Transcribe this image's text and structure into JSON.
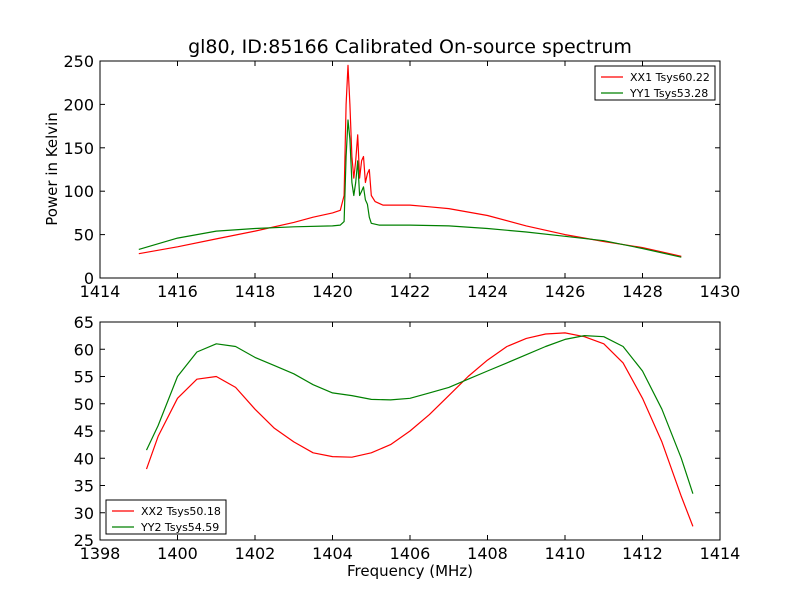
{
  "chart_data": [
    {
      "type": "line",
      "title": "gl80, ID:85166 Calibrated On-source spectrum",
      "xlabel": "",
      "ylabel": "Power in Kelvin",
      "xlim": [
        1414,
        1430
      ],
      "ylim": [
        0,
        250
      ],
      "xticks": [
        1414,
        1416,
        1418,
        1420,
        1422,
        1424,
        1426,
        1428,
        1430
      ],
      "yticks": [
        0,
        50,
        100,
        150,
        200,
        250
      ],
      "legend_position": "top-right",
      "series": [
        {
          "name": "XX1 Tsys60.22",
          "color": "#ff0000",
          "points": [
            [
              1415,
              28
            ],
            [
              1416,
              36
            ],
            [
              1417,
              45
            ],
            [
              1418,
              54
            ],
            [
              1419,
              64
            ],
            [
              1419.5,
              70
            ],
            [
              1420,
              75
            ],
            [
              1420.2,
              78
            ],
            [
              1420.3,
              95
            ],
            [
              1420.35,
              200
            ],
            [
              1420.4,
              245
            ],
            [
              1420.45,
              200
            ],
            [
              1420.5,
              140
            ],
            [
              1420.55,
              115
            ],
            [
              1420.6,
              135
            ],
            [
              1420.65,
              165
            ],
            [
              1420.7,
              115
            ],
            [
              1420.75,
              135
            ],
            [
              1420.8,
              140
            ],
            [
              1420.85,
              110
            ],
            [
              1420.9,
              120
            ],
            [
              1420.95,
              125
            ],
            [
              1421,
              95
            ],
            [
              1421.1,
              88
            ],
            [
              1421.3,
              84
            ],
            [
              1422,
              84
            ],
            [
              1422.5,
              82
            ],
            [
              1423,
              80
            ],
            [
              1424,
              72
            ],
            [
              1425,
              60
            ],
            [
              1426,
              50
            ],
            [
              1427,
              42
            ],
            [
              1428,
              35
            ],
            [
              1429,
              25
            ]
          ]
        },
        {
          "name": "YY1 Tsys53.28",
          "color": "#008000",
          "points": [
            [
              1415,
              33
            ],
            [
              1416,
              46
            ],
            [
              1417,
              54
            ],
            [
              1418,
              57
            ],
            [
              1419,
              59
            ],
            [
              1420,
              60
            ],
            [
              1420.2,
              61
            ],
            [
              1420.3,
              65
            ],
            [
              1420.35,
              140
            ],
            [
              1420.4,
              182
            ],
            [
              1420.45,
              160
            ],
            [
              1420.5,
              110
            ],
            [
              1420.55,
              95
            ],
            [
              1420.6,
              110
            ],
            [
              1420.65,
              135
            ],
            [
              1420.7,
              95
            ],
            [
              1420.75,
              100
            ],
            [
              1420.8,
              105
            ],
            [
              1420.85,
              90
            ],
            [
              1420.9,
              85
            ],
            [
              1420.95,
              70
            ],
            [
              1421,
              63
            ],
            [
              1421.2,
              61
            ],
            [
              1422,
              61
            ],
            [
              1423,
              60
            ],
            [
              1424,
              57
            ],
            [
              1425,
              53
            ],
            [
              1426,
              48
            ],
            [
              1427,
              43
            ],
            [
              1428,
              34
            ],
            [
              1429,
              24
            ]
          ]
        }
      ]
    },
    {
      "type": "line",
      "title": "",
      "xlabel": "Frequency (MHz)",
      "ylabel": "",
      "xlim": [
        1398,
        1414
      ],
      "ylim": [
        25,
        65
      ],
      "xticks": [
        1398,
        1400,
        1402,
        1404,
        1406,
        1408,
        1410,
        1412,
        1414
      ],
      "yticks": [
        25,
        30,
        35,
        40,
        45,
        50,
        55,
        60,
        65
      ],
      "legend_position": "bottom-left",
      "series": [
        {
          "name": "XX2 Tsys50.18",
          "color": "#ff0000",
          "points": [
            [
              1399.2,
              38
            ],
            [
              1399.5,
              44
            ],
            [
              1400,
              51
            ],
            [
              1400.5,
              54.5
            ],
            [
              1401,
              55
            ],
            [
              1401.5,
              53
            ],
            [
              1402,
              49
            ],
            [
              1402.5,
              45.5
            ],
            [
              1403,
              43
            ],
            [
              1403.5,
              41
            ],
            [
              1404,
              40.3
            ],
            [
              1404.5,
              40.2
            ],
            [
              1405,
              41
            ],
            [
              1405.5,
              42.5
            ],
            [
              1406,
              45
            ],
            [
              1406.5,
              48
            ],
            [
              1407,
              51.5
            ],
            [
              1407.5,
              55
            ],
            [
              1408,
              58
            ],
            [
              1408.5,
              60.5
            ],
            [
              1409,
              62
            ],
            [
              1409.5,
              62.8
            ],
            [
              1410,
              63
            ],
            [
              1410.5,
              62.3
            ],
            [
              1411,
              61
            ],
            [
              1411.5,
              57.5
            ],
            [
              1412,
              51
            ],
            [
              1412.5,
              43
            ],
            [
              1413,
              33
            ],
            [
              1413.3,
              27.5
            ]
          ]
        },
        {
          "name": "YY2 Tsys54.59",
          "color": "#008000",
          "points": [
            [
              1399.2,
              41.5
            ],
            [
              1399.5,
              46
            ],
            [
              1400,
              55
            ],
            [
              1400.5,
              59.5
            ],
            [
              1401,
              61
            ],
            [
              1401.5,
              60.5
            ],
            [
              1402,
              58.5
            ],
            [
              1402.5,
              57
            ],
            [
              1403,
              55.5
            ],
            [
              1403.5,
              53.5
            ],
            [
              1404,
              52
            ],
            [
              1404.5,
              51.5
            ],
            [
              1405,
              50.8
            ],
            [
              1405.5,
              50.7
            ],
            [
              1406,
              51
            ],
            [
              1406.5,
              52
            ],
            [
              1407,
              53
            ],
            [
              1407.5,
              54.5
            ],
            [
              1408,
              56
            ],
            [
              1408.5,
              57.5
            ],
            [
              1409,
              59
            ],
            [
              1409.5,
              60.5
            ],
            [
              1410,
              61.8
            ],
            [
              1410.5,
              62.5
            ],
            [
              1411,
              62.3
            ],
            [
              1411.5,
              60.5
            ],
            [
              1412,
              56
            ],
            [
              1412.5,
              49
            ],
            [
              1413,
              40
            ],
            [
              1413.3,
              33.5
            ]
          ]
        }
      ]
    }
  ]
}
